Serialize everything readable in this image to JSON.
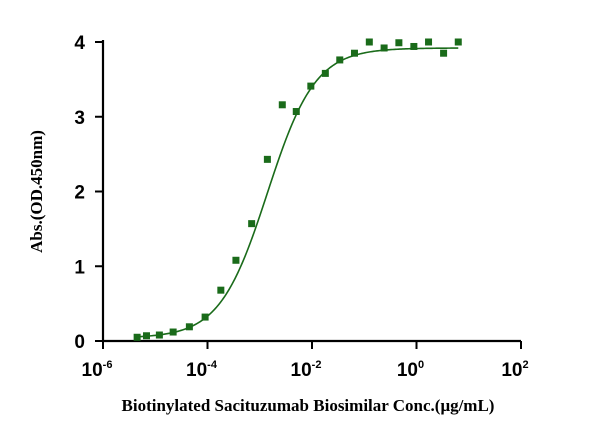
{
  "chart_data": {
    "type": "scatter",
    "xscale": "log",
    "xlabel": "Biotinylated Sacituzumab Biosimilar Conc.(μg/mL)",
    "ylabel": "Abs.(OD.450nm)",
    "xlim": [
      1e-06,
      100
    ],
    "ylim": [
      0,
      4
    ],
    "x_ticks": [
      {
        "base": "10",
        "exp": "-6",
        "value": 1e-06
      },
      {
        "base": "10",
        "exp": "-4",
        "value": 0.0001
      },
      {
        "base": "10",
        "exp": "-2",
        "value": 0.01
      },
      {
        "base": "10",
        "exp": "0",
        "value": 1
      },
      {
        "base": "10",
        "exp": "2",
        "value": 100
      }
    ],
    "y_ticks": [
      {
        "label": "0",
        "value": 0
      },
      {
        "label": "1",
        "value": 1
      },
      {
        "label": "2",
        "value": 2
      },
      {
        "label": "3",
        "value": 3
      },
      {
        "label": "4",
        "value": 4
      }
    ],
    "grid": false,
    "colors": {
      "series": "#1a6b1a",
      "axes": "#000000"
    },
    "series": [
      {
        "marker": "square",
        "points": [
          {
            "x": 4.5e-06,
            "y": 0.05
          },
          {
            "x": 6.8e-06,
            "y": 0.07
          },
          {
            "x": 1.2e-05,
            "y": 0.08
          },
          {
            "x": 2.2e-05,
            "y": 0.12
          },
          {
            "x": 4.5e-05,
            "y": 0.19
          },
          {
            "x": 9e-05,
            "y": 0.32
          },
          {
            "x": 0.00018,
            "y": 0.68
          },
          {
            "x": 0.00035,
            "y": 1.08
          },
          {
            "x": 0.0007,
            "y": 1.57
          },
          {
            "x": 0.0014,
            "y": 2.43
          },
          {
            "x": 0.0027,
            "y": 3.16
          },
          {
            "x": 0.005,
            "y": 3.07
          },
          {
            "x": 0.0095,
            "y": 3.41
          },
          {
            "x": 0.018,
            "y": 3.58
          },
          {
            "x": 0.034,
            "y": 3.76
          },
          {
            "x": 0.065,
            "y": 3.85
          },
          {
            "x": 0.125,
            "y": 4.0
          },
          {
            "x": 0.24,
            "y": 3.92
          },
          {
            "x": 0.46,
            "y": 3.99
          },
          {
            "x": 0.89,
            "y": 3.94
          },
          {
            "x": 1.7,
            "y": 4.0
          },
          {
            "x": 3.3,
            "y": 3.85
          },
          {
            "x": 6.3,
            "y": 4.0
          }
        ]
      }
    ],
    "fit": {
      "model": "4PL",
      "bottom": 0.04,
      "top": 3.92,
      "ec50": 0.0014,
      "hill": 0.95,
      "x_range": [
        4.5e-06,
        6.3
      ]
    }
  }
}
